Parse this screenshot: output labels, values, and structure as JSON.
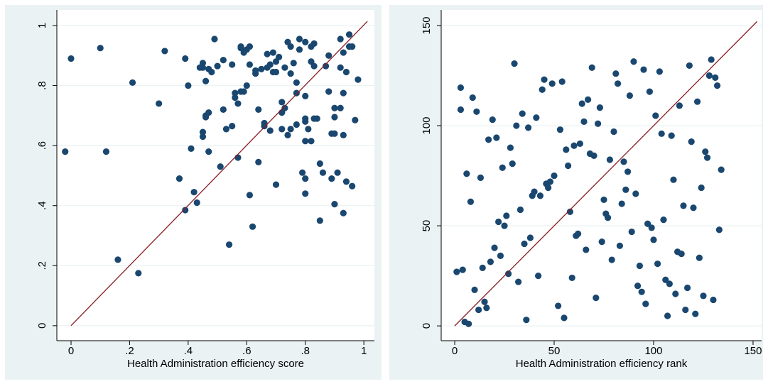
{
  "chart_data": [
    {
      "type": "scatter",
      "xlabel": "Health Administration efficiency score",
      "color": "#1a476f",
      "grid": true,
      "xlim": [
        -0.0485,
        1.036
      ],
      "ylim": [
        -0.05,
        1.052
      ],
      "xticks": [
        0,
        {
          "value": 0.2,
          "label": ".2"
        },
        {
          "value": 0.4,
          "label": ".4"
        },
        {
          "value": 0.6,
          "label": ".6"
        },
        {
          "value": 0.8,
          "label": ".8"
        },
        1
      ],
      "yticks": [
        0,
        {
          "value": 0.2,
          "label": ".2"
        },
        {
          "value": 0.4,
          "label": ".4"
        },
        {
          "value": 0.6,
          "label": ".6"
        },
        {
          "value": 0.8,
          "label": ".8"
        },
        1
      ],
      "x": [
        -0.02,
        0.0,
        0.1,
        0.12,
        0.16,
        0.21,
        0.23,
        0.3,
        0.32,
        0.37,
        0.39,
        0.39,
        0.4,
        0.41,
        0.42,
        0.43,
        0.44,
        0.45,
        0.45,
        0.46,
        0.47,
        0.45,
        0.45,
        0.46,
        0.46,
        0.47,
        0.47,
        0.48,
        0.49,
        0.5,
        0.51,
        0.52,
        0.52,
        0.53,
        0.54,
        0.55,
        0.55,
        0.56,
        0.56,
        0.57,
        0.57,
        0.58,
        0.58,
        0.58,
        0.59,
        0.59,
        0.6,
        0.6,
        0.61,
        0.61,
        0.61,
        0.62,
        0.63,
        0.63,
        0.64,
        0.64,
        0.65,
        0.66,
        0.66,
        0.67,
        0.67,
        0.68,
        0.68,
        0.69,
        0.69,
        0.7,
        0.7,
        0.7,
        0.71,
        0.72,
        0.72,
        0.72,
        0.73,
        0.73,
        0.74,
        0.74,
        0.75,
        0.75,
        0.75,
        0.76,
        0.77,
        0.77,
        0.77,
        0.78,
        0.78,
        0.79,
        0.8,
        0.8,
        0.8,
        0.8,
        0.8,
        0.8,
        0.8,
        0.81,
        0.82,
        0.82,
        0.82,
        0.83,
        0.83,
        0.83,
        0.84,
        0.85,
        0.85,
        0.86,
        0.87,
        0.88,
        0.88,
        0.89,
        0.89,
        0.9,
        0.9,
        0.9,
        0.9,
        0.91,
        0.92,
        0.92,
        0.92,
        0.93,
        0.93,
        0.93,
        0.93,
        0.94,
        0.94,
        0.95,
        0.95,
        0.96,
        0.96,
        0.97,
        0.98
      ],
      "y": [
        0.58,
        0.89,
        0.925,
        0.58,
        0.22,
        0.81,
        0.175,
        0.74,
        0.915,
        0.49,
        0.89,
        0.385,
        0.8,
        0.59,
        0.445,
        0.41,
        0.86,
        0.875,
        0.86,
        0.815,
        0.855,
        0.63,
        0.645,
        0.7,
        0.695,
        0.71,
        0.58,
        0.845,
        0.955,
        0.865,
        0.53,
        0.72,
        0.885,
        0.655,
        0.27,
        0.87,
        0.665,
        0.76,
        0.775,
        0.74,
        0.56,
        0.925,
        0.93,
        0.78,
        0.91,
        0.78,
        0.92,
        0.8,
        0.93,
        0.87,
        0.435,
        0.33,
        0.85,
        0.84,
        0.545,
        0.72,
        0.855,
        0.675,
        0.665,
        0.86,
        0.905,
        0.87,
        0.65,
        0.845,
        0.91,
        0.845,
        0.47,
        0.88,
        0.895,
        0.655,
        0.745,
        0.71,
        0.725,
        0.86,
        0.635,
        0.945,
        0.93,
        0.84,
        0.655,
        0.875,
        0.775,
        0.81,
        0.67,
        0.955,
        0.92,
        0.51,
        0.945,
        0.765,
        0.69,
        0.68,
        0.615,
        0.44,
        0.49,
        0.655,
        0.93,
        0.615,
        0.88,
        0.94,
        0.865,
        0.69,
        0.69,
        0.54,
        0.35,
        0.51,
        0.865,
        0.78,
        0.9,
        0.64,
        0.49,
        0.405,
        0.725,
        0.695,
        0.64,
        0.51,
        0.955,
        0.86,
        0.725,
        0.375,
        0.775,
        0.635,
        0.91,
        0.845,
        0.48,
        0.97,
        0.93,
        0.465,
        0.93,
        0.685,
        0.82
      ],
      "reference_line": {
        "x": [
          0,
          1.012
        ],
        "y": [
          0,
          1.014
        ],
        "color": "#8b1c24"
      }
    },
    {
      "type": "scatter",
      "xlabel": "Health Administration efficiency rank",
      "color": "#1a476f",
      "grid": true,
      "xlim": [
        -6.8,
        154.3
      ],
      "ylim": [
        -7.4,
        157.8
      ],
      "xticks": [
        0,
        50,
        100,
        150
      ],
      "yticks": [
        0,
        50,
        100,
        150
      ],
      "x": [
        1,
        3,
        3,
        4,
        5,
        6,
        7,
        8,
        9,
        10,
        11,
        12,
        13,
        14,
        15,
        16,
        17,
        18,
        19,
        20,
        21,
        22,
        23,
        24,
        25,
        26,
        27,
        28,
        29,
        30,
        31,
        32,
        33,
        34,
        35,
        36,
        37,
        38,
        39,
        40,
        41,
        42,
        43,
        44,
        45,
        46,
        47,
        48,
        49,
        50,
        52,
        53,
        54,
        55,
        56,
        57,
        58,
        59,
        60,
        61,
        62,
        63,
        64,
        65,
        66,
        67,
        68,
        69,
        70,
        71,
        72,
        73,
        74,
        75,
        76,
        77,
        78,
        79,
        80,
        81,
        82,
        83,
        84,
        85,
        86,
        87,
        88,
        89,
        90,
        91,
        92,
        93,
        94,
        95,
        96,
        97,
        98,
        99,
        100,
        101,
        102,
        103,
        104,
        105,
        106,
        107,
        108,
        109,
        110,
        111,
        112,
        113,
        114,
        115,
        116,
        117,
        118,
        119,
        120,
        121,
        122,
        123,
        124,
        125,
        126,
        127,
        128,
        129,
        130,
        131,
        132,
        133,
        134
      ],
      "y": [
        27,
        108,
        119,
        28,
        2,
        76,
        1,
        62,
        114,
        18,
        107,
        8,
        74,
        29,
        12,
        9,
        93,
        32,
        103,
        39,
        94,
        52,
        35,
        79,
        50,
        55,
        26,
        89,
        81,
        131,
        100,
        22,
        58,
        106,
        41,
        3,
        99,
        44,
        65,
        67,
        104,
        25,
        65,
        118,
        123,
        71,
        69,
        72,
        121,
        75,
        10,
        98,
        122,
        4,
        88,
        80,
        57,
        24,
        90,
        45,
        46,
        91,
        111,
        102,
        38,
        113,
        86,
        129,
        85,
        14,
        101,
        109,
        42,
        63,
        56,
        54,
        83,
        33,
        97,
        126,
        121,
        40,
        61,
        82,
        68,
        77,
        115,
        47,
        132,
        66,
        20,
        30,
        17,
        128,
        11,
        51,
        117,
        49,
        43,
        105,
        31,
        127,
        96,
        53,
        23,
        5,
        21,
        95,
        73,
        16,
        37,
        110,
        36,
        60,
        8,
        19,
        130,
        92,
        59,
        6,
        112,
        34,
        69,
        15,
        87,
        84,
        125,
        133,
        13,
        124,
        120,
        48,
        78
      ],
      "reference_line": {
        "x": [
          0,
          152
        ],
        "y": [
          0,
          152
        ],
        "color": "#8b1c24"
      }
    }
  ]
}
